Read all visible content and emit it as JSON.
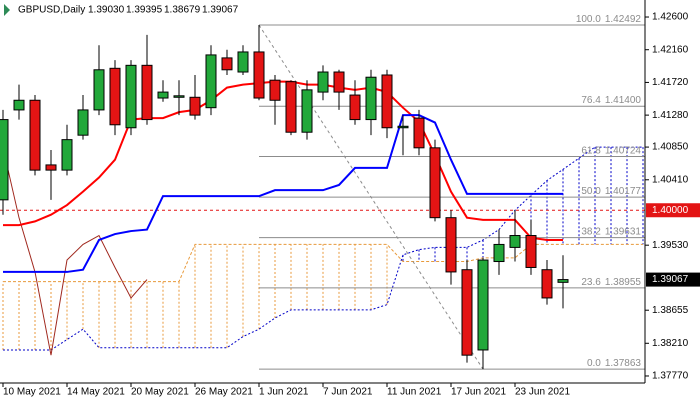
{
  "chart_data": {
    "type": "candlestick",
    "symbol": "GBPUSD,Daily",
    "header_values": [
      "1.39030",
      "1.39395",
      "1.38679",
      "1.39067"
    ],
    "categories": [
      "10 May 2021",
      null,
      null,
      null,
      "14 May 2021",
      null,
      null,
      null,
      "20 May 2021",
      null,
      null,
      null,
      "26 May 2021",
      null,
      null,
      null,
      "1 Jun 2021",
      null,
      null,
      null,
      "7 Jun 2021",
      null,
      null,
      null,
      "11 Jun 2021",
      null,
      null,
      null,
      "17 Jun 2021",
      null,
      null,
      null,
      "23 Jun 2021",
      null,
      null,
      null,
      null,
      null,
      null,
      null,
      null
    ],
    "open": [
      1.4014,
      1.4135,
      1.4148,
      1.4061,
      1.4054,
      1.4101,
      1.4135,
      1.4191,
      1.4111,
      1.4195,
      1.4151,
      1.4152,
      1.4152,
      1.4138,
      1.4205,
      1.4186,
      1.4213,
      1.4175,
      1.4173,
      1.4105,
      1.4159,
      1.4186,
      1.4155,
      1.4122,
      1.4182,
      1.4111,
      1.4124,
      1.4084,
      1.399,
      1.392,
      1.3812,
      1.3931,
      1.395,
      1.3966,
      1.392,
      1.3903,
      null,
      null,
      null,
      null,
      null
    ],
    "high": [
      1.4135,
      1.4169,
      1.4155,
      1.4081,
      1.4115,
      1.4155,
      1.4222,
      1.4202,
      1.4202,
      1.4236,
      1.4175,
      1.4175,
      1.4182,
      1.4222,
      1.4216,
      1.4222,
      1.42492,
      1.4182,
      1.4175,
      1.4175,
      1.4195,
      1.4189,
      1.4175,
      1.4189,
      1.4189,
      1.4128,
      1.4135,
      1.4095,
      1.4,
      1.3933,
      1.3936,
      1.3974,
      1.4,
      1.3987,
      1.3933,
      1.39395,
      null,
      null,
      null,
      null,
      null
    ],
    "low": [
      1.3994,
      1.4122,
      1.4047,
      1.4014,
      1.4047,
      1.4095,
      1.4128,
      1.4101,
      1.4101,
      1.4115,
      1.4146,
      1.4128,
      1.4122,
      1.4128,
      1.4182,
      1.4182,
      1.4148,
      1.4115,
      1.4101,
      1.4095,
      1.4148,
      1.4135,
      1.4115,
      1.4101,
      1.4097,
      1.4074,
      1.4074,
      1.3985,
      1.39,
      1.3795,
      1.37863,
      1.3913,
      1.3931,
      1.3913,
      1.3873,
      1.38679,
      null,
      null,
      null,
      null,
      null
    ],
    "close": [
      1.4122,
      1.4148,
      1.4054,
      1.4054,
      1.4095,
      1.4135,
      1.4189,
      1.4115,
      1.4195,
      1.4122,
      1.4159,
      1.4154,
      1.4128,
      1.4209,
      1.4189,
      1.4213,
      1.4151,
      1.4148,
      1.4105,
      1.4162,
      1.4186,
      1.4159,
      1.4122,
      1.4179,
      1.4111,
      1.4113,
      1.4084,
      1.399,
      1.3917,
      1.3805,
      1.3933,
      1.3954,
      1.3966,
      1.3923,
      1.3882,
      1.39067,
      null,
      null,
      null,
      null,
      null
    ],
    "up_color": "#22a83a",
    "down_color": "#e31414",
    "tenkan": {
      "color": "#ff0000",
      "values": [
        1.398,
        1.398,
        1.3985,
        1.3994,
        1.4007,
        1.4025,
        1.4044,
        1.4068,
        1.4122,
        1.4124,
        1.4124,
        1.4132,
        1.4135,
        1.4148,
        1.4165,
        1.4169,
        1.4171,
        1.4173,
        1.4173,
        1.4169,
        1.4169,
        1.4165,
        1.4162,
        1.4165,
        1.4159,
        1.4138,
        1.4119,
        1.4074,
        1.4025,
        1.399,
        1.3987,
        1.3987,
        1.3987,
        1.3963,
        1.396,
        1.396,
        null,
        null,
        null,
        null,
        null
      ]
    },
    "kijun": {
      "color": "#0000ff",
      "values": [
        1.3917,
        1.3917,
        1.3917,
        1.3917,
        1.3917,
        1.392,
        1.396,
        1.3968,
        1.3972,
        1.3974,
        1.4019,
        1.4019,
        1.4019,
        1.4019,
        1.4019,
        1.4019,
        1.4019,
        1.4027,
        1.4027,
        1.4027,
        1.4027,
        1.4034,
        1.4057,
        1.4057,
        1.4057,
        1.4128,
        1.4128,
        1.4118,
        1.4068,
        1.4022,
        1.4022,
        1.4022,
        1.4022,
        1.4022,
        1.4022,
        1.4022,
        null,
        null,
        null,
        null,
        null
      ]
    },
    "senkou_a": {
      "color": "#0000c8",
      "values": [
        1.3812,
        1.3812,
        1.3812,
        1.3812,
        1.3826,
        1.384,
        1.3815,
        1.3815,
        1.3815,
        1.3815,
        1.3815,
        1.3815,
        1.3815,
        1.3815,
        1.3815,
        1.383,
        1.384,
        1.3855,
        1.3866,
        1.3866,
        1.3866,
        1.3866,
        1.3866,
        1.3866,
        1.3873,
        1.394,
        1.3947,
        1.395,
        1.395,
        1.395,
        1.396,
        1.3974,
        1.4,
        1.402,
        1.404,
        1.4055,
        1.407,
        1.4085,
        1.4085,
        1.4085,
        1.4085
      ]
    },
    "senkou_b": {
      "color": "#e89a3c",
      "values": [
        1.3904,
        1.3904,
        1.3904,
        1.3904,
        1.3904,
        1.3904,
        1.3904,
        1.3904,
        1.3904,
        1.3904,
        1.3904,
        1.3904,
        1.3954,
        1.3954,
        1.3954,
        1.3954,
        1.3954,
        1.3954,
        1.3954,
        1.3954,
        1.3954,
        1.3954,
        1.3954,
        1.3954,
        1.3954,
        1.3931,
        1.3931,
        1.3931,
        1.3931,
        1.3931,
        1.3936,
        1.3936,
        1.3936,
        1.3954,
        1.3954,
        1.3954,
        1.3954,
        1.3954,
        1.3954,
        1.3954,
        1.3954
      ]
    },
    "chikou_color": "#a0281e",
    "fib": {
      "color": "#8c8c8c",
      "levels": [
        {
          "level": "100.0",
          "price": 1.42492
        },
        {
          "level": "76.4",
          "price": {
            "value": 1.414,
            "label": "1.41400"
          }
        },
        {
          "level": "61.8",
          "price": 1.40724
        },
        {
          "level": "50.0",
          "price": 1.40177
        },
        {
          "level": "38.2",
          "price": 1.39631
        },
        {
          "level": "23.6",
          "price": 1.38955
        },
        {
          "level": "0.0",
          "price": 1.37863
        }
      ]
    },
    "hline": {
      "value": 1.4,
      "label": "1.40000",
      "color": "#e31414"
    },
    "last_price": {
      "value": 1.39067,
      "label": "1.39067"
    },
    "ylim": [
      1.37689,
      1.42829
    ],
    "yticks": [
      {
        "value": 1.3777,
        "label": "1.37770"
      },
      {
        "value": 1.3821,
        "label": "1.38210"
      },
      1.38655,
      {
        "value": 1.3953,
        "label": "1.39530"
      },
      {
        "value": 1.4041,
        "label": "1.40410"
      },
      {
        "value": 1.4085,
        "label": "1.40850"
      },
      {
        "value": 1.4128,
        "label": "1.41280"
      },
      {
        "value": 1.4172,
        "label": "1.41720"
      },
      {
        "value": 1.4216,
        "label": "1.42160"
      },
      {
        "value": 1.426,
        "label": "1.42600"
      }
    ],
    "grid": false
  }
}
